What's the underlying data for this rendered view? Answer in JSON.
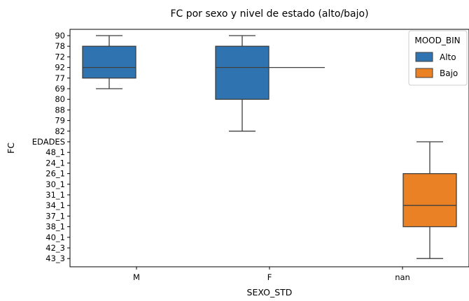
{
  "chart_data": {
    "type": "box",
    "title": "FC por sexo y nivel de estado (alto/bajo)",
    "xlabel": "SEXO_STD",
    "ylabel": "FC",
    "categories": [
      "M",
      "F",
      "nan"
    ],
    "y_categories": [
      "90",
      "78",
      "72",
      "92",
      "77",
      "69",
      "80",
      "88",
      "79",
      "82",
      "EDADES",
      "48_1",
      "24_1",
      "26_1",
      "30_1",
      "31_1",
      "34_1",
      "37_1",
      "38_1",
      "40_1",
      "42_3",
      "43_3"
    ],
    "legend": {
      "title": "MOOD_BIN",
      "position": "top-right",
      "entries": [
        {
          "label": "Alto",
          "color": "#2f74b0"
        },
        {
          "label": "Bajo",
          "color": "#ea8124"
        }
      ]
    },
    "series": [
      {
        "name": "Alto",
        "color": "#2f74b0",
        "boxes": [
          {
            "category": "M",
            "whisker_low": "69",
            "q1": "77",
            "median": "92",
            "q3": "78",
            "whisker_high": "90"
          },
          {
            "category": "F",
            "whisker_low": "82",
            "q1": "80",
            "median": "92",
            "q3": "78",
            "whisker_high": "90"
          }
        ]
      },
      {
        "name": "Bajo",
        "color": "#ea8124",
        "boxes": [
          {
            "category": "nan",
            "whisker_low": "43_3",
            "q1": "38_1",
            "median": "34_1",
            "q3": "26_1",
            "whisker_high": "EDADES"
          }
        ]
      }
    ],
    "grid": false
  }
}
